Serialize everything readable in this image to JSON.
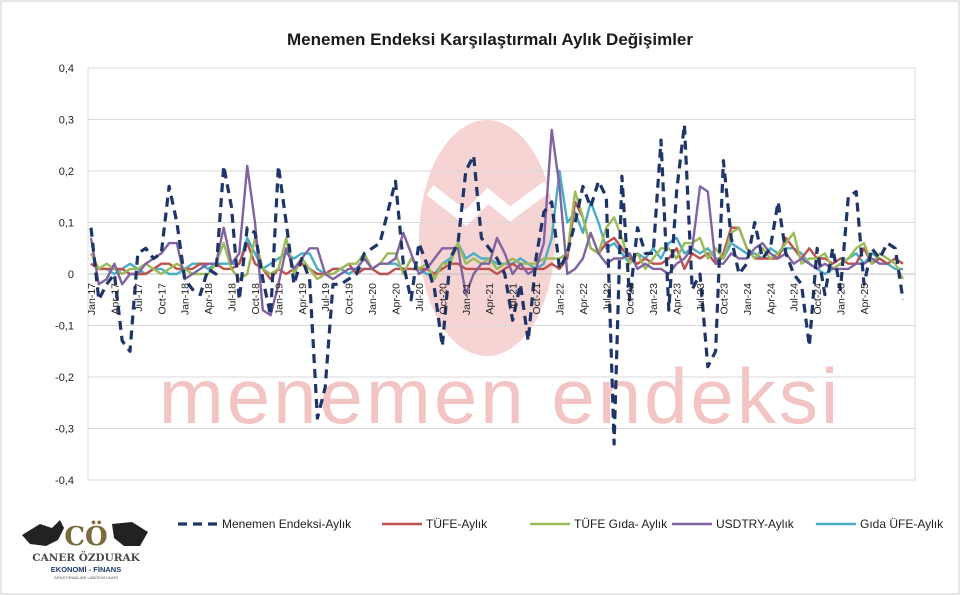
{
  "chart_data": {
    "type": "line",
    "title": "Menemen Endeksi Karşılaştırmalı Aylık Değişimler",
    "ylim": [
      -0.4,
      0.4
    ],
    "y_ticks": [
      "0,4",
      "0,3",
      "0,2",
      "0,1",
      "0",
      "-0,1",
      "-0,2",
      "-0,3",
      "-0,4"
    ],
    "grid": "horizontal",
    "legend_position": "bottom",
    "x_tick_labels": [
      "Jan-17",
      "Apr-17",
      "Jul-17",
      "Oct-17",
      "Jan-18",
      "Apr-18",
      "Jul-18",
      "Oct-18",
      "Jan-19",
      "Apr-19",
      "Jul-19",
      "Oct-19",
      "Jan-20",
      "Apr-20",
      "Jul-20",
      "Oct-20",
      "Jan-21",
      "Apr-21",
      "Jul-21",
      "Oct-21",
      "Jan-22",
      "Apr-22",
      "Jul-22",
      "Oct-22",
      "Jan-23",
      "Apr-23",
      "Jul-23",
      "Oct-23",
      "Jan-24",
      "Apr-24",
      "Jul-24",
      "Oct-24",
      "Jan-25",
      "Apr-25"
    ],
    "x_start": "2017-01",
    "series": [
      {
        "name": "Menemen Endeksi-Aylık",
        "color": "#1f3468",
        "dash": true,
        "values": [
          0.09,
          -0.05,
          -0.02,
          0.0,
          -0.13,
          -0.15,
          0.04,
          0.05,
          0.03,
          0.04,
          0.17,
          0.1,
          -0.01,
          -0.03,
          -0.04,
          0.01,
          0.0,
          0.21,
          0.13,
          -0.05,
          0.09,
          0.08,
          -0.01,
          -0.08,
          0.21,
          0.1,
          -0.02,
          0.03,
          -0.01,
          -0.28,
          -0.22,
          -0.02,
          -0.02,
          -0.01,
          0.0,
          0.04,
          0.05,
          0.06,
          0.12,
          0.18,
          0.02,
          -0.05,
          0.06,
          0.02,
          -0.03,
          -0.14,
          0.03,
          0.06,
          0.2,
          0.23,
          0.07,
          0.05,
          0.03,
          0.0,
          -0.09,
          -0.02,
          -0.13,
          0.03,
          0.12,
          0.14,
          0.01,
          0.04,
          0.1,
          0.17,
          0.13,
          0.18,
          0.15,
          -0.33,
          0.19,
          -0.05,
          0.09,
          0.04,
          0.04,
          0.26,
          -0.07,
          0.16,
          0.29,
          -0.03,
          0.0,
          -0.18,
          -0.15,
          0.22,
          0.07,
          0.0,
          0.02,
          0.1,
          0.03,
          0.05,
          0.14,
          0.04,
          0.0,
          -0.02,
          -0.14,
          0.05,
          -0.04,
          0.05,
          -0.03,
          0.15,
          0.16,
          -0.02,
          0.05,
          0.03,
          0.06,
          0.05,
          -0.05
        ]
      },
      {
        "name": "TÜFE-Aylık",
        "color": "#c0504d",
        "dash": false,
        "values": [
          0.02,
          0.01,
          0.01,
          0.01,
          0.01,
          0.0,
          0.0,
          0.0,
          0.01,
          0.02,
          0.02,
          0.01,
          0.01,
          0.01,
          0.02,
          0.02,
          0.02,
          0.01,
          0.01,
          0.02,
          0.06,
          0.02,
          0.01,
          -0.01,
          0.01,
          0.0,
          0.01,
          0.02,
          0.01,
          0.0,
          0.0,
          0.01,
          0.01,
          0.02,
          0.0,
          0.01,
          0.01,
          0.0,
          0.0,
          0.01,
          0.01,
          0.01,
          0.01,
          0.01,
          0.0,
          0.01,
          0.02,
          0.02,
          0.01,
          0.01,
          0.01,
          0.01,
          0.0,
          0.01,
          0.02,
          0.01,
          0.01,
          0.01,
          0.01,
          0.02,
          0.01,
          0.03,
          0.14,
          0.11,
          0.05,
          0.04,
          0.06,
          0.07,
          0.05,
          0.03,
          0.02,
          0.03,
          0.02,
          0.02,
          0.03,
          0.05,
          0.01,
          0.04,
          0.03,
          0.04,
          0.02,
          0.04,
          0.09,
          0.09,
          0.05,
          0.03,
          0.03,
          0.03,
          0.03,
          0.07,
          0.05,
          0.03,
          0.05,
          0.03,
          0.03,
          0.02,
          0.03,
          0.02,
          0.02,
          0.05,
          0.02,
          0.03,
          0.02,
          0.03,
          0.02
        ]
      },
      {
        "name": "TÜFE Gıda- Aylık",
        "color": "#9bbb59",
        "dash": false,
        "values": [
          0.04,
          0.01,
          0.02,
          0.01,
          0.0,
          0.01,
          0.01,
          0.02,
          0.01,
          0.0,
          0.01,
          0.02,
          0.01,
          0.0,
          0.0,
          0.0,
          0.02,
          0.06,
          0.01,
          -0.01,
          0.0,
          0.07,
          0.01,
          0.0,
          0.01,
          0.07,
          0.0,
          0.03,
          0.01,
          -0.01,
          0.0,
          0.0,
          0.01,
          0.02,
          0.02,
          0.04,
          0.01,
          0.02,
          0.04,
          0.04,
          0.0,
          0.03,
          0.01,
          0.02,
          -0.01,
          0.02,
          0.02,
          0.06,
          0.02,
          0.03,
          0.02,
          0.03,
          0.01,
          0.02,
          0.03,
          0.02,
          0.02,
          0.02,
          0.03,
          0.03,
          0.03,
          0.04,
          0.16,
          0.11,
          0.05,
          0.04,
          0.09,
          0.11,
          0.07,
          0.02,
          0.04,
          0.01,
          0.03,
          0.05,
          0.05,
          0.03,
          0.06,
          0.06,
          0.07,
          0.03,
          0.05,
          0.03,
          0.08,
          0.09,
          0.05,
          0.03,
          0.05,
          0.03,
          0.04,
          0.06,
          0.08,
          0.02,
          0.03,
          0.03,
          0.04,
          0.01,
          0.02,
          0.03,
          0.05,
          0.06,
          0.02,
          0.04,
          0.03,
          0.02,
          -0.01
        ]
      },
      {
        "name": "USDTRY-Aylık",
        "color": "#8064a2",
        "dash": false,
        "values": [
          0.07,
          -0.02,
          -0.01,
          0.02,
          -0.02,
          0.0,
          0.0,
          0.02,
          0.03,
          0.04,
          0.06,
          0.06,
          -0.01,
          0.0,
          0.01,
          0.02,
          0.02,
          0.09,
          0.02,
          0.04,
          0.21,
          0.1,
          -0.07,
          -0.08,
          -0.02,
          0.05,
          0.01,
          0.03,
          0.05,
          0.05,
          0.0,
          -0.01,
          0.0,
          0.01,
          0.01,
          0.03,
          0.01,
          0.02,
          0.02,
          0.03,
          0.08,
          0.04,
          0.0,
          0.01,
          0.03,
          0.05,
          0.05,
          0.05,
          -0.04,
          0.0,
          0.02,
          0.02,
          0.07,
          0.04,
          0.0,
          0.02,
          0.0,
          0.01,
          0.06,
          0.28,
          0.17,
          0.0,
          0.01,
          0.03,
          0.08,
          0.04,
          0.02,
          0.03,
          0.03,
          0.04,
          0.01,
          0.02,
          0.01,
          0.01,
          0.0,
          0.02,
          0.03,
          0.05,
          0.17,
          0.16,
          0.02,
          0.02,
          0.04,
          0.03,
          0.03,
          0.05,
          0.06,
          0.04,
          0.03,
          0.04,
          0.02,
          0.03,
          0.02,
          0.01,
          0.02,
          0.01,
          0.01,
          0.01,
          0.02,
          0.02,
          0.03,
          0.02,
          0.02
        ]
      },
      {
        "name": "Gıda ÜFE-Aylık",
        "color": "#4bacc6",
        "dash": false,
        "values": [
          0.02,
          0.01,
          0.01,
          0.0,
          0.01,
          0.02,
          0.01,
          0.0,
          0.01,
          0.01,
          0.0,
          0.0,
          0.01,
          0.02,
          0.02,
          0.01,
          0.02,
          0.02,
          0.02,
          0.02,
          0.07,
          0.04,
          0.01,
          0.02,
          0.03,
          0.04,
          0.03,
          0.04,
          0.04,
          0.01,
          0.0,
          0.01,
          0.01,
          0.0,
          0.01,
          0.01,
          0.01,
          0.02,
          0.02,
          0.02,
          0.01,
          0.01,
          0.01,
          0.0,
          0.0,
          0.02,
          0.03,
          0.06,
          0.03,
          0.04,
          0.03,
          0.03,
          0.02,
          0.02,
          0.02,
          0.03,
          0.02,
          0.01,
          0.02,
          0.07,
          0.2,
          0.1,
          0.12,
          0.08,
          0.14,
          0.1,
          0.05,
          0.06,
          0.04,
          0.02,
          0.04,
          0.03,
          0.05,
          0.03,
          0.06,
          0.07,
          0.04,
          0.05,
          0.04,
          0.05,
          0.03,
          0.03,
          0.06,
          0.05,
          0.04,
          0.04,
          0.03,
          0.05,
          0.04,
          0.05,
          0.05,
          0.04,
          0.02,
          0.01,
          0.0,
          0.01,
          0.02,
          0.03,
          0.04,
          0.02,
          0.04,
          0.03,
          0.02,
          0.01,
          0.01
        ]
      }
    ]
  },
  "watermark": {
    "text": "menemen endeksi"
  },
  "logo": {
    "initials": "CÖ",
    "name": "CANER ÖZDURAK",
    "sub": "EKONOMİ - FİNANS",
    "tiny": "ARAŞTIRMALARI LABORATUVARI"
  }
}
